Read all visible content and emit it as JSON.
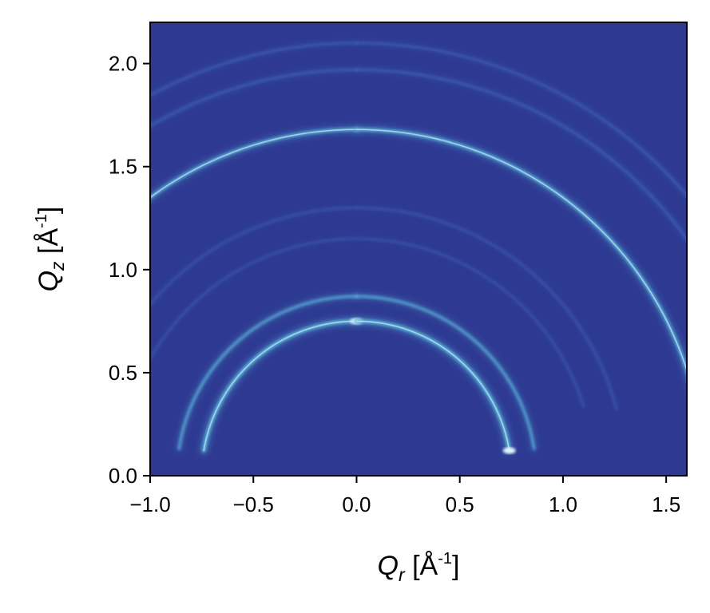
{
  "chart_data": {
    "type": "heatmap",
    "title": "",
    "xlabel": {
      "symbol": "Q",
      "subscript": "r",
      "unit": " [Å",
      "exponent": "-1",
      "close": "]"
    },
    "ylabel": {
      "symbol": "Q",
      "subscript": "z",
      "unit": " [Å",
      "exponent": "-1",
      "close": "]"
    },
    "xlim": [
      -1.0,
      1.6
    ],
    "ylim": [
      0.0,
      2.2
    ],
    "xticks": [
      -1.0,
      -0.5,
      0.0,
      0.5,
      1.0,
      1.5
    ],
    "xtick_labels": [
      "−1.0",
      "−0.5",
      "0.0",
      "0.5",
      "1.0",
      "1.5"
    ],
    "yticks": [
      0.0,
      0.5,
      1.0,
      1.5,
      2.0
    ],
    "ytick_labels": [
      "0.0",
      "0.5",
      "1.0",
      "1.5",
      "2.0"
    ],
    "colors": {
      "background": "#2e3a92",
      "peak_low": "#3e64b8",
      "peak_mid": "#58b0d8",
      "peak_high": "#e8fbff"
    },
    "rings": [
      {
        "q": 0.75,
        "intensity": 0.95,
        "segments": [
          [
            0.0,
            0.74,
            0.95
          ],
          [
            0.74,
            0.0,
            0.95
          ]
        ]
      },
      {
        "q": 0.87,
        "intensity": 0.55,
        "segments": [
          [
            0.0,
            0.86,
            0.55
          ],
          [
            0.86,
            0.0,
            0.55
          ]
        ]
      },
      {
        "q": 1.15,
        "intensity": 0.12,
        "segments": [
          [
            0.0,
            1.1,
            0.12
          ],
          [
            1.1,
            0.0,
            0.12
          ]
        ]
      },
      {
        "q": 1.3,
        "intensity": 0.16,
        "segments": [
          [
            0.0,
            1.26,
            0.16
          ],
          [
            1.26,
            0.0,
            0.16
          ]
        ]
      },
      {
        "q": 1.68,
        "intensity": 0.75,
        "segments": [
          [
            0.0,
            1.65,
            0.75
          ],
          [
            1.65,
            0.0,
            0.8
          ]
        ]
      },
      {
        "q": 1.97,
        "intensity": 0.4,
        "segments": [
          [
            0.0,
            1.92,
            0.4
          ],
          [
            1.92,
            0.0,
            0.4
          ]
        ]
      },
      {
        "q": 2.1,
        "intensity": 0.35,
        "segments": [
          [
            0.0,
            2.03,
            0.35
          ],
          [
            2.03,
            0.0,
            0.35
          ]
        ]
      }
    ]
  }
}
